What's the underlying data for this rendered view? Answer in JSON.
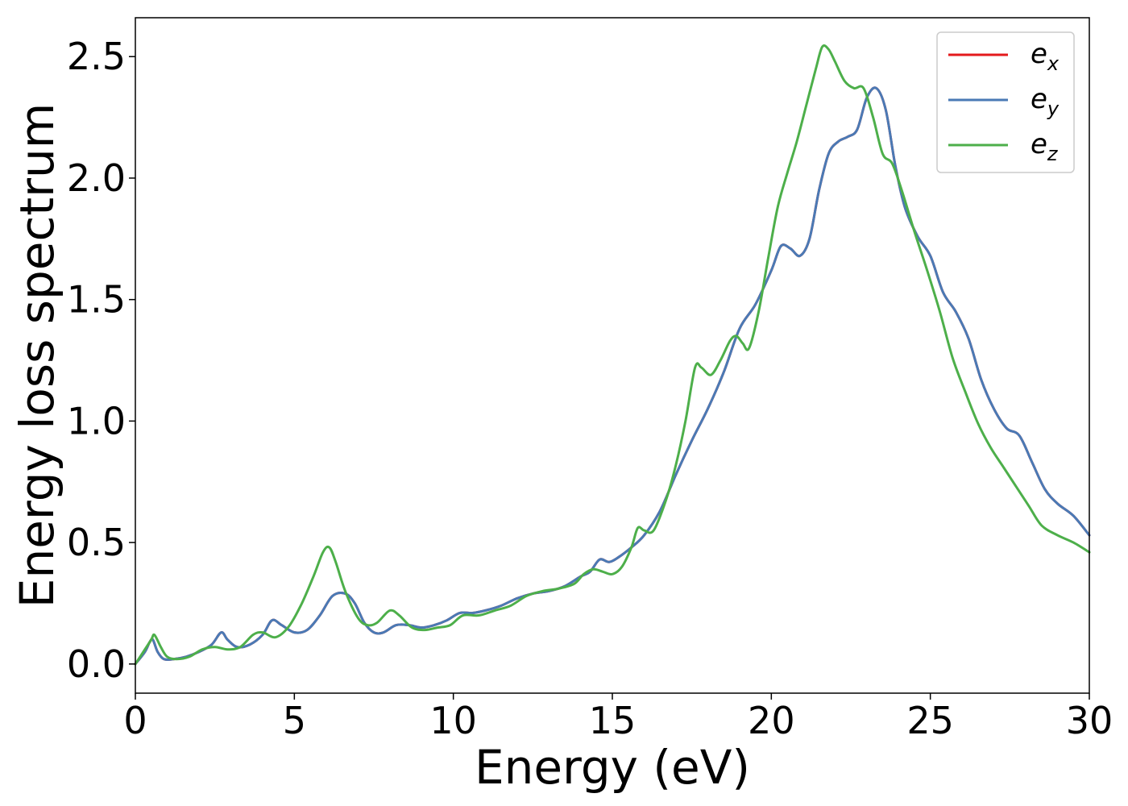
{
  "chart_data": {
    "type": "line",
    "xlabel": "Energy (eV)",
    "ylabel": "Energy loss spectrum",
    "xlim": [
      0,
      30
    ],
    "ylim": [
      -0.12,
      2.66
    ],
    "xticks": [
      0,
      5,
      10,
      15,
      20,
      25,
      30
    ],
    "xtick_labels": [
      "0",
      "5",
      "10",
      "15",
      "20",
      "25",
      "30"
    ],
    "yticks": [
      0.0,
      0.5,
      1.0,
      1.5,
      2.0,
      2.5
    ],
    "ytick_labels": [
      "0.0",
      "0.5",
      "1.0",
      "1.5",
      "2.0",
      "2.5"
    ],
    "grid": false,
    "legend_position": "top-right",
    "series": [
      {
        "name": "e_x",
        "base": "e",
        "sub": "x",
        "color": "#e41a1c",
        "x": [
          0,
          0.3,
          0.45,
          0.55,
          0.7,
          0.9,
          1.2,
          1.6,
          2.0,
          2.4,
          2.7,
          2.9,
          3.2,
          3.6,
          4.0,
          4.3,
          4.6,
          5.0,
          5.4,
          5.8,
          6.2,
          6.6,
          6.9,
          7.2,
          7.5,
          7.8,
          8.2,
          8.6,
          9.0,
          9.4,
          9.8,
          10.2,
          10.6,
          11.0,
          11.5,
          12.0,
          12.5,
          13.0,
          13.5,
          14.0,
          14.3,
          14.6,
          14.9,
          15.2,
          15.6,
          16.0,
          16.5,
          17.0,
          17.5,
          18.0,
          18.5,
          19.0,
          19.5,
          20.0,
          20.3,
          20.6,
          20.9,
          21.2,
          21.5,
          21.8,
          22.1,
          22.4,
          22.7,
          23.0,
          23.3,
          23.6,
          23.9,
          24.2,
          24.6,
          25.0,
          25.4,
          25.8,
          26.2,
          26.6,
          27.0,
          27.4,
          27.8,
          28.2,
          28.6,
          29.0,
          29.5,
          30.0
        ],
        "values": [
          0.0,
          0.05,
          0.09,
          0.1,
          0.05,
          0.02,
          0.02,
          0.03,
          0.05,
          0.08,
          0.13,
          0.1,
          0.07,
          0.08,
          0.12,
          0.18,
          0.16,
          0.13,
          0.14,
          0.2,
          0.28,
          0.29,
          0.25,
          0.17,
          0.13,
          0.13,
          0.16,
          0.16,
          0.15,
          0.16,
          0.18,
          0.21,
          0.21,
          0.22,
          0.24,
          0.27,
          0.29,
          0.3,
          0.32,
          0.36,
          0.38,
          0.43,
          0.42,
          0.44,
          0.48,
          0.53,
          0.63,
          0.78,
          0.92,
          1.05,
          1.2,
          1.38,
          1.48,
          1.62,
          1.72,
          1.71,
          1.68,
          1.75,
          1.95,
          2.1,
          2.15,
          2.17,
          2.2,
          2.33,
          2.37,
          2.28,
          2.05,
          1.88,
          1.76,
          1.68,
          1.53,
          1.45,
          1.34,
          1.17,
          1.05,
          0.97,
          0.94,
          0.83,
          0.72,
          0.66,
          0.61,
          0.53
        ]
      },
      {
        "name": "e_y",
        "base": "e",
        "sub": "y",
        "color": "#4a7ab5",
        "x": [
          0,
          0.3,
          0.45,
          0.55,
          0.7,
          0.9,
          1.2,
          1.6,
          2.0,
          2.4,
          2.7,
          2.9,
          3.2,
          3.6,
          4.0,
          4.3,
          4.6,
          5.0,
          5.4,
          5.8,
          6.2,
          6.6,
          6.9,
          7.2,
          7.5,
          7.8,
          8.2,
          8.6,
          9.0,
          9.4,
          9.8,
          10.2,
          10.6,
          11.0,
          11.5,
          12.0,
          12.5,
          13.0,
          13.5,
          14.0,
          14.3,
          14.6,
          14.9,
          15.2,
          15.6,
          16.0,
          16.5,
          17.0,
          17.5,
          18.0,
          18.5,
          19.0,
          19.5,
          20.0,
          20.3,
          20.6,
          20.9,
          21.2,
          21.5,
          21.8,
          22.1,
          22.4,
          22.7,
          23.0,
          23.3,
          23.6,
          23.9,
          24.2,
          24.6,
          25.0,
          25.4,
          25.8,
          26.2,
          26.6,
          27.0,
          27.4,
          27.8,
          28.2,
          28.6,
          29.0,
          29.5,
          30.0
        ],
        "values": [
          0.0,
          0.05,
          0.09,
          0.1,
          0.05,
          0.02,
          0.02,
          0.03,
          0.05,
          0.08,
          0.13,
          0.1,
          0.07,
          0.08,
          0.12,
          0.18,
          0.16,
          0.13,
          0.14,
          0.2,
          0.28,
          0.29,
          0.25,
          0.17,
          0.13,
          0.13,
          0.16,
          0.16,
          0.15,
          0.16,
          0.18,
          0.21,
          0.21,
          0.22,
          0.24,
          0.27,
          0.29,
          0.3,
          0.32,
          0.36,
          0.38,
          0.43,
          0.42,
          0.44,
          0.48,
          0.53,
          0.63,
          0.78,
          0.92,
          1.05,
          1.2,
          1.38,
          1.48,
          1.62,
          1.72,
          1.71,
          1.68,
          1.75,
          1.95,
          2.1,
          2.15,
          2.17,
          2.2,
          2.33,
          2.37,
          2.28,
          2.05,
          1.88,
          1.76,
          1.68,
          1.53,
          1.45,
          1.34,
          1.17,
          1.05,
          0.97,
          0.94,
          0.83,
          0.72,
          0.66,
          0.61,
          0.53
        ]
      },
      {
        "name": "e_z",
        "base": "e",
        "sub": "z",
        "color": "#4daf4a",
        "x": [
          0,
          0.3,
          0.5,
          0.6,
          0.8,
          1.0,
          1.3,
          1.7,
          2.1,
          2.5,
          2.9,
          3.3,
          3.7,
          4.0,
          4.4,
          4.8,
          5.2,
          5.6,
          5.9,
          6.1,
          6.3,
          6.6,
          7.0,
          7.3,
          7.6,
          8.0,
          8.3,
          8.7,
          9.1,
          9.5,
          9.9,
          10.3,
          10.8,
          11.3,
          11.8,
          12.3,
          12.8,
          13.3,
          13.8,
          14.1,
          14.4,
          14.7,
          15.0,
          15.3,
          15.6,
          15.8,
          16.0,
          16.3,
          16.7,
          17.0,
          17.3,
          17.6,
          17.8,
          18.1,
          18.4,
          18.7,
          18.9,
          19.1,
          19.3,
          19.6,
          19.9,
          20.2,
          20.5,
          20.8,
          21.1,
          21.4,
          21.6,
          21.8,
          22.0,
          22.3,
          22.6,
          22.9,
          23.2,
          23.5,
          23.8,
          24.1,
          24.5,
          24.9,
          25.3,
          25.7,
          26.1,
          26.5,
          26.9,
          27.3,
          27.7,
          28.1,
          28.5,
          29.0,
          29.5,
          30.0
        ],
        "values": [
          0.0,
          0.06,
          0.1,
          0.12,
          0.07,
          0.03,
          0.02,
          0.03,
          0.06,
          0.07,
          0.06,
          0.07,
          0.12,
          0.13,
          0.11,
          0.15,
          0.24,
          0.36,
          0.46,
          0.48,
          0.42,
          0.3,
          0.19,
          0.16,
          0.17,
          0.22,
          0.2,
          0.15,
          0.14,
          0.15,
          0.16,
          0.2,
          0.2,
          0.22,
          0.24,
          0.28,
          0.3,
          0.31,
          0.33,
          0.37,
          0.39,
          0.38,
          0.37,
          0.4,
          0.48,
          0.56,
          0.55,
          0.55,
          0.68,
          0.82,
          1.0,
          1.22,
          1.22,
          1.19,
          1.25,
          1.33,
          1.35,
          1.32,
          1.3,
          1.45,
          1.67,
          1.88,
          2.02,
          2.15,
          2.3,
          2.45,
          2.54,
          2.53,
          2.48,
          2.4,
          2.37,
          2.37,
          2.25,
          2.1,
          2.06,
          1.95,
          1.78,
          1.62,
          1.45,
          1.26,
          1.12,
          0.99,
          0.89,
          0.81,
          0.73,
          0.65,
          0.57,
          0.53,
          0.5,
          0.46
        ]
      }
    ]
  }
}
